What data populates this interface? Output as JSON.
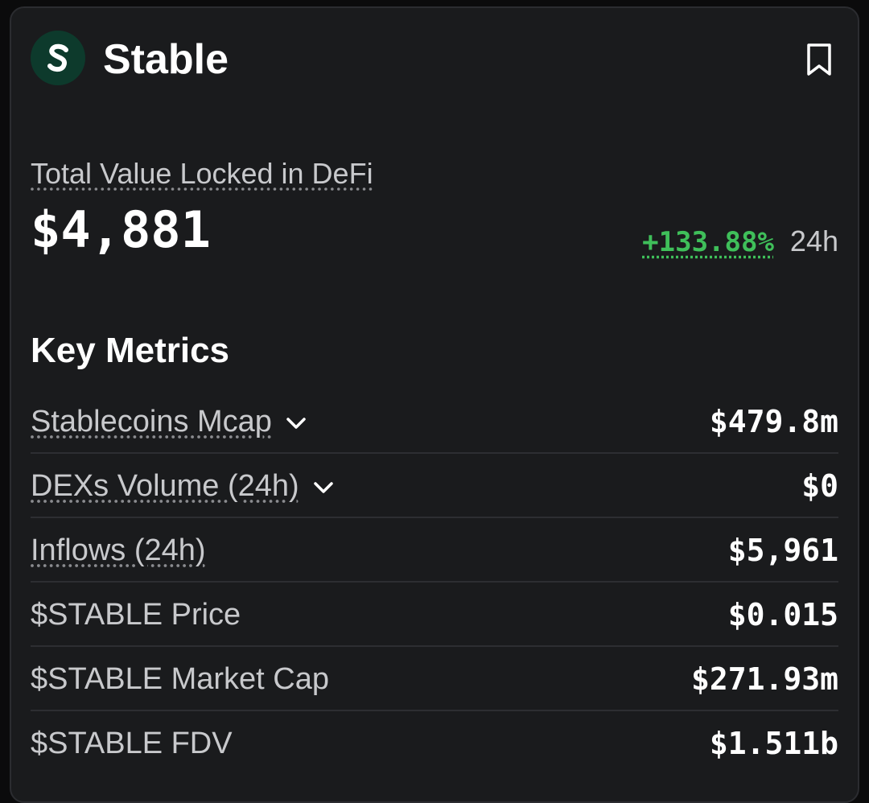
{
  "header": {
    "title": "Stable",
    "logo_icon": "stable-logo-icon",
    "bookmark_icon": "bookmark-icon",
    "logo_bg": "#0d3a2c"
  },
  "tvl": {
    "label": "Total Value Locked in DeFi",
    "value": "$4,881",
    "change": "+133.88%",
    "change_color": "#3fbf5a",
    "period": "24h"
  },
  "key_metrics": {
    "title": "Key Metrics",
    "rows": [
      {
        "label": "Stablecoins Mcap",
        "value": "$479.8m",
        "expandable": true
      },
      {
        "label": "DEXs Volume (24h)",
        "value": "$0",
        "expandable": true
      },
      {
        "label": "Inflows (24h)",
        "value": "$5,961",
        "expandable": false
      },
      {
        "label": "$STABLE Price",
        "value": "$0.015",
        "expandable": false
      },
      {
        "label": "$STABLE Market Cap",
        "value": "$271.93m",
        "expandable": false
      },
      {
        "label": "$STABLE FDV",
        "value": "$1.511b",
        "expandable": false
      }
    ]
  }
}
